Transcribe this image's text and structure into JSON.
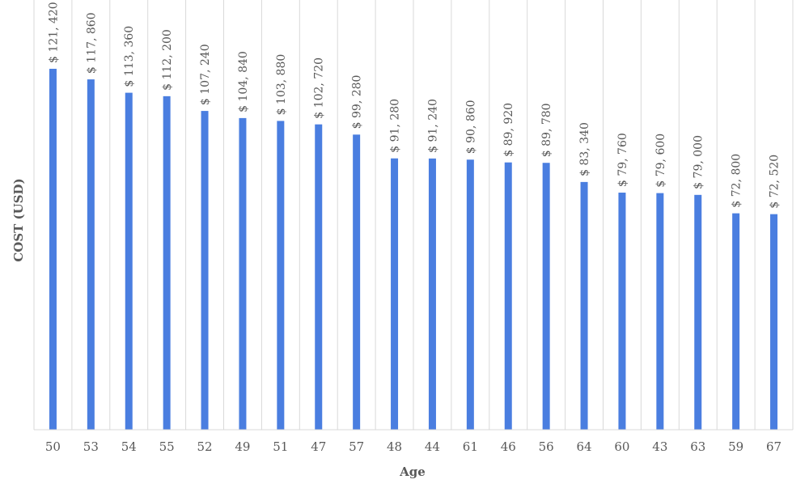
{
  "chart_data": {
    "type": "bar",
    "xlabel": "Age",
    "ylabel": "COST (USD)",
    "categories": [
      "50",
      "53",
      "54",
      "55",
      "52",
      "49",
      "51",
      "47",
      "57",
      "48",
      "44",
      "61",
      "46",
      "56",
      "64",
      "60",
      "43",
      "63",
      "59",
      "67"
    ],
    "values": [
      121420,
      117860,
      113360,
      112200,
      107240,
      104840,
      103880,
      102720,
      99280,
      91280,
      91240,
      90860,
      89920,
      89780,
      83340,
      79760,
      79600,
      79000,
      72800,
      72520
    ],
    "data_labels": [
      "$ 121, 420",
      "$ 117, 860",
      "$ 113, 360",
      "$ 112, 200",
      "$ 107, 240",
      "$ 104, 840",
      "$ 103, 880",
      "$ 102, 720",
      "$ 99, 280",
      "$ 91, 280",
      "$ 91, 240",
      "$ 90, 860",
      "$ 89, 920",
      "$ 89, 780",
      "$ 83, 340",
      "$ 79, 760",
      "$ 79, 600",
      "$ 79, 000",
      "$ 72, 800",
      "$ 72, 520"
    ],
    "ylim": [
      0,
      121420
    ],
    "grid": "vertical",
    "legend": "none",
    "colors": {
      "bar": "#4a7ee0",
      "grid": "#d9d9d9",
      "axis": "#d9d9d9",
      "text": "#595959"
    }
  }
}
